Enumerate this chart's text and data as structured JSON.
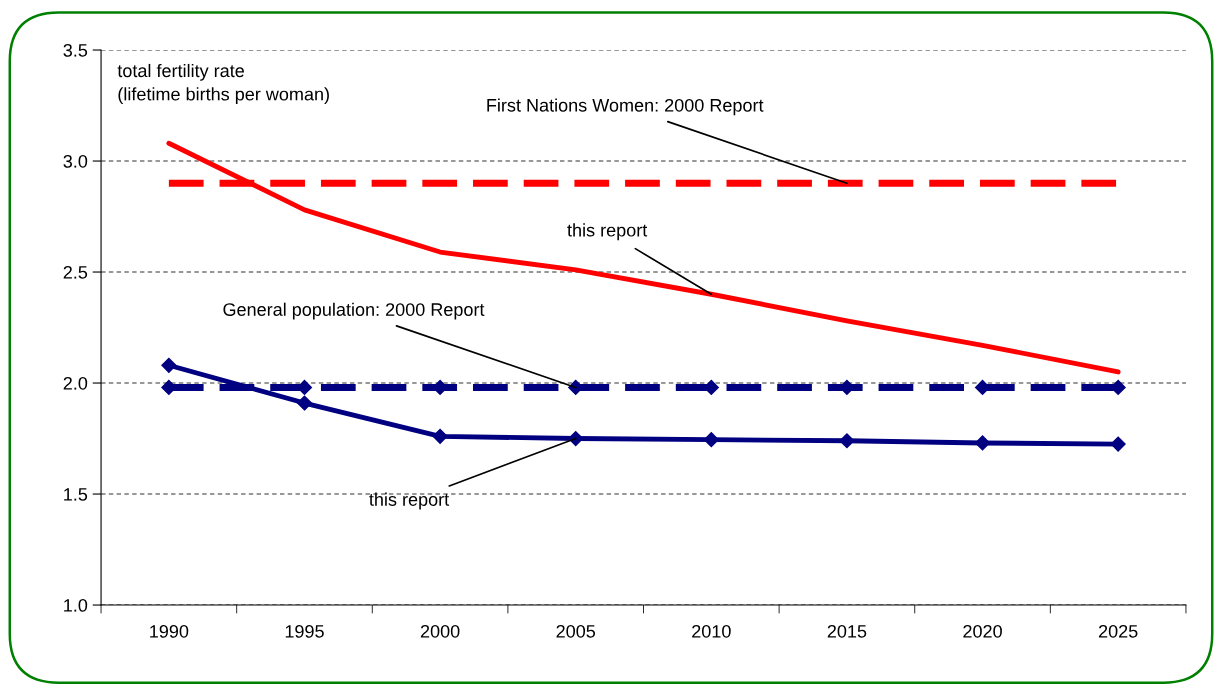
{
  "chart_data": {
    "type": "line",
    "ylabel": "total fertility rate\n(lifetime births per woman)",
    "categories": [
      "1990",
      "1995",
      "2000",
      "2005",
      "2010",
      "2015",
      "2020",
      "2025"
    ],
    "series": [
      {
        "color": "#ff0000",
        "values": [
          3.08,
          2.78,
          2.59,
          2.51,
          2.4,
          2.28,
          2.17,
          2.05
        ],
        "marker": "none",
        "line_style": "solid"
      },
      {
        "color": "#ff0000",
        "values": [
          2.9,
          2.9,
          2.9,
          2.9,
          2.9,
          2.9,
          2.9,
          2.9
        ],
        "marker": "none",
        "line_style": "dashed"
      },
      {
        "color": "#000080",
        "values": [
          2.08,
          1.91,
          1.76,
          1.75,
          1.745,
          1.74,
          1.73,
          1.725
        ],
        "marker": "diamond",
        "line_style": "solid"
      },
      {
        "color": "#000080",
        "values": [
          1.98,
          1.98,
          1.98,
          1.98,
          1.98,
          1.98,
          1.98,
          1.98
        ],
        "marker": "diamond",
        "line_style": "dashed"
      }
    ],
    "annotations": [
      {
        "text": "First Nations Women: 2000 Report",
        "x": "2015",
        "y": 2.9
      },
      {
        "text": "this report",
        "x": "2010",
        "y": 2.4
      },
      {
        "text": "General population: 2000 Report",
        "x": "2005",
        "y": 1.98
      },
      {
        "text": "this report",
        "x": "2005",
        "y": 1.75
      }
    ],
    "ylim": [
      1.0,
      3.5
    ],
    "yticks": [
      {
        "value": 1.0,
        "label": "1.0"
      },
      {
        "value": 1.5,
        "label": "1.5"
      },
      {
        "value": 2.0,
        "label": "2.0"
      },
      {
        "value": 2.5,
        "label": "2.5"
      },
      {
        "value": 3.0,
        "label": "3.0"
      },
      {
        "value": 3.5,
        "label": "3.5"
      }
    ],
    "grid": "y"
  }
}
